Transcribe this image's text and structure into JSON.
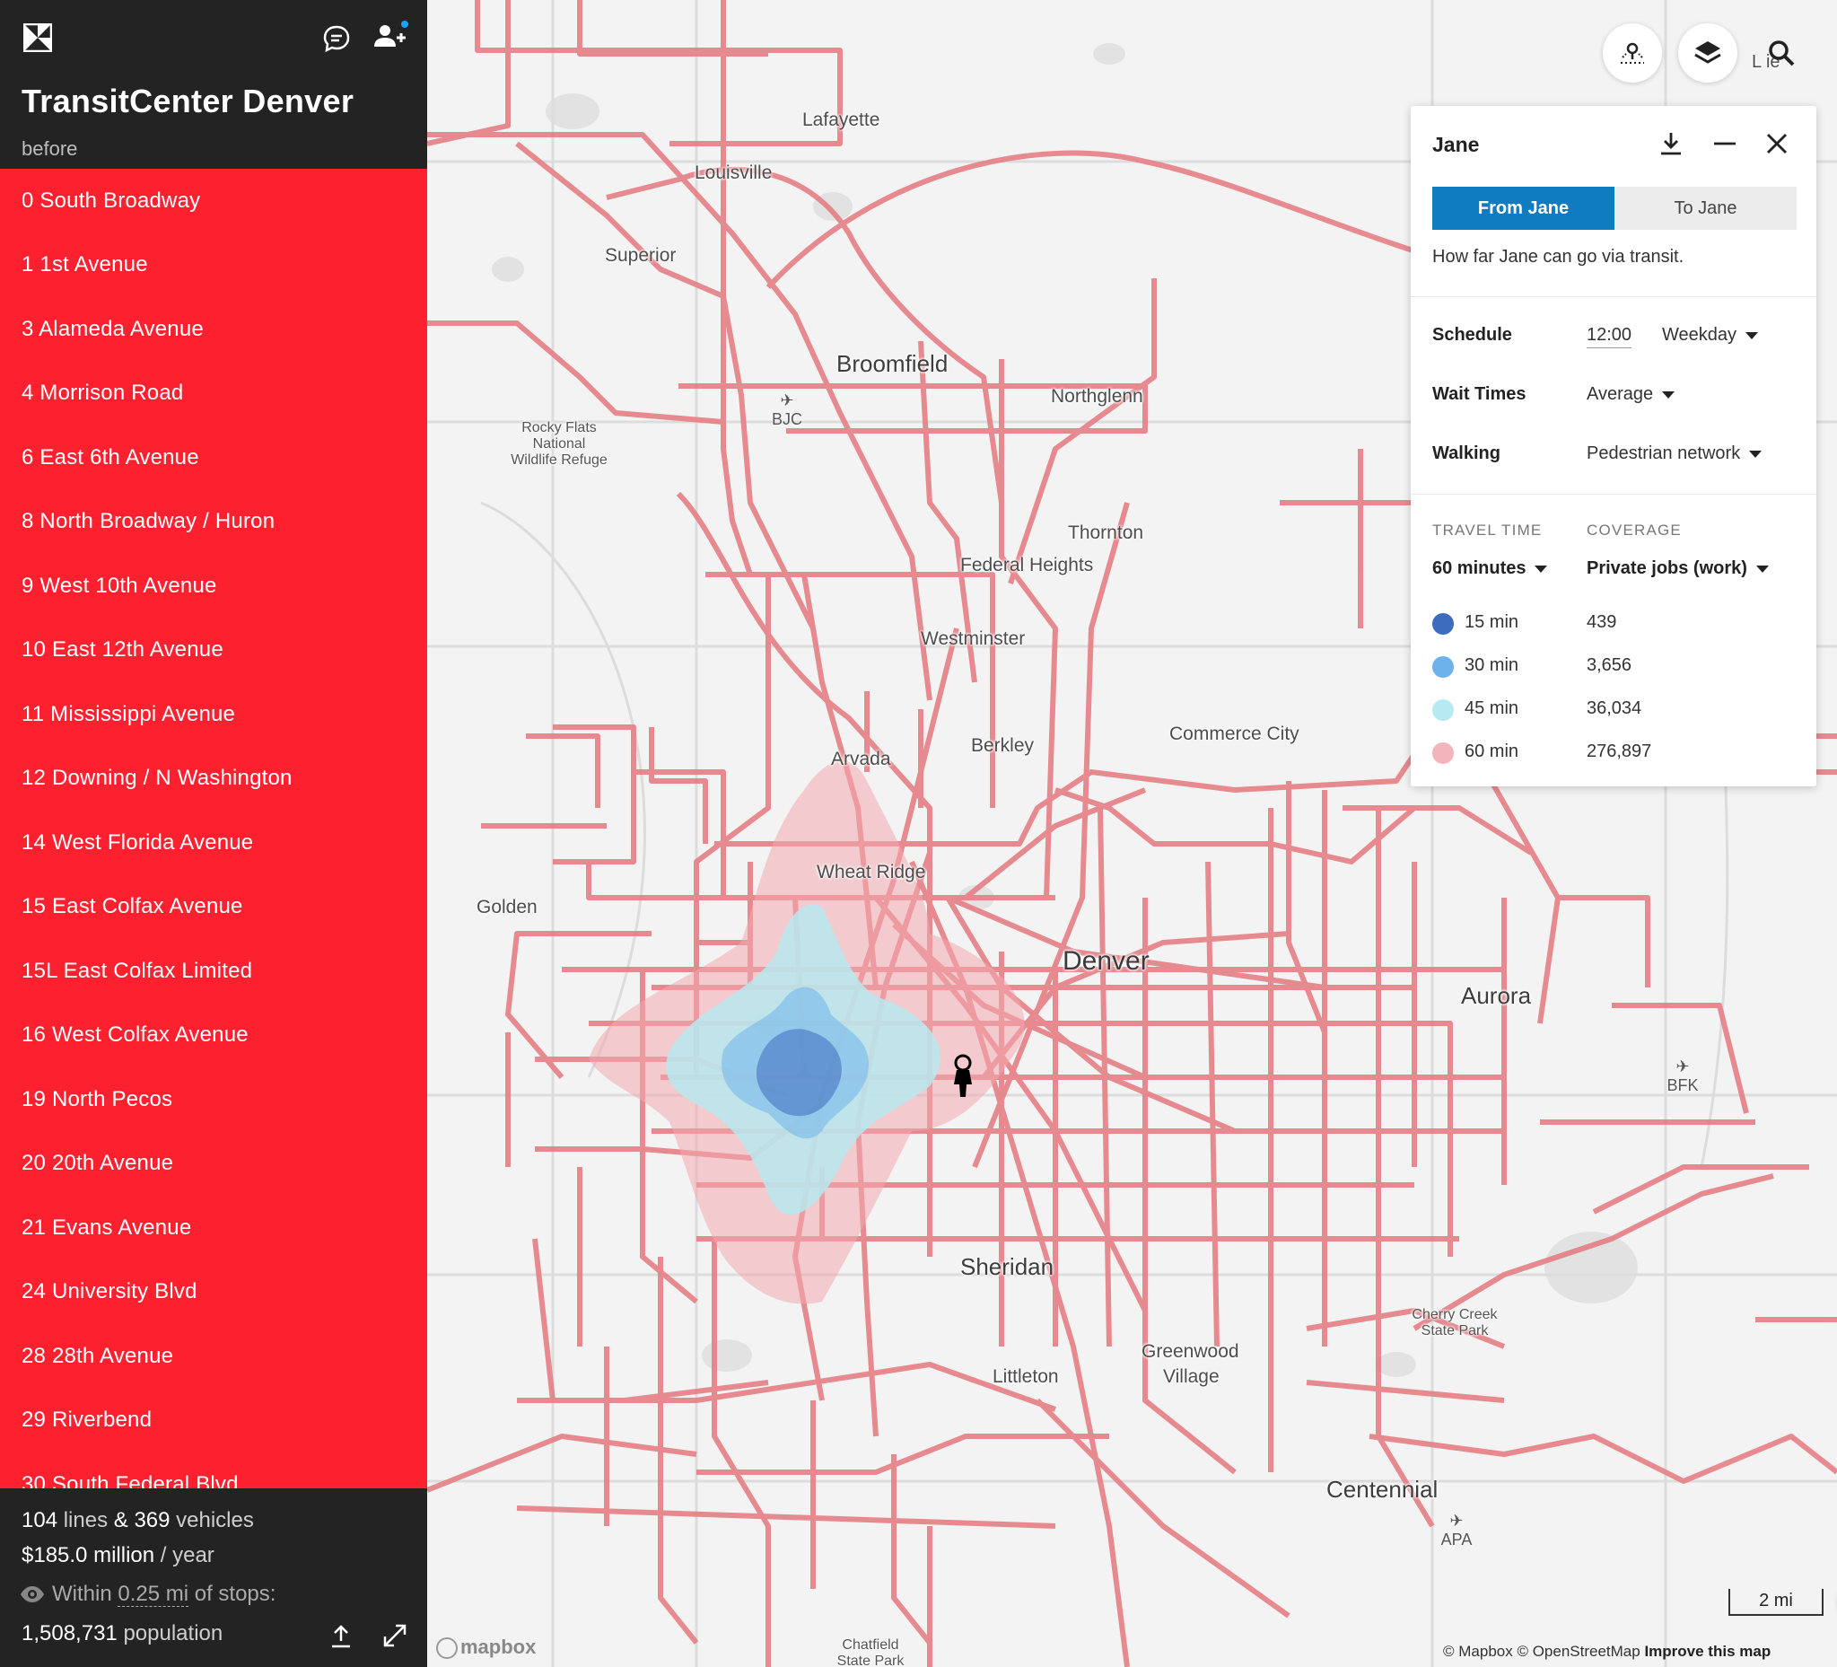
{
  "app": {
    "title": "TransitCenter Denver",
    "subtitle": "before"
  },
  "icons": {
    "logo": "logo-icon",
    "chat": "chat-icon",
    "invite": "add-user-icon",
    "upload": "upload-icon",
    "expand": "expand-icon",
    "eye": "eye-icon"
  },
  "lines": [
    "0 South Broadway",
    "1 1st Avenue",
    "3 Alameda Avenue",
    "4 Morrison Road",
    "6 East 6th Avenue",
    "8 North Broadway / Huron",
    "9 West 10th Avenue",
    "10 East 12th Avenue",
    "11 Mississippi Avenue",
    "12 Downing / N Washington",
    "14 West Florida Avenue",
    "15 East Colfax Avenue",
    "15L East Colfax Limited",
    "16 West Colfax Avenue",
    "19 North Pecos",
    "20 20th Avenue",
    "21 Evans Avenue",
    "24 University Blvd",
    "28 28th Avenue",
    "29 Riverbend",
    "30 South Federal Blvd"
  ],
  "stats": {
    "lines_count": "104",
    "lines_word": "lines",
    "amp": "&",
    "vehicles_count": "369",
    "vehicles_word": "vehicles",
    "cost": "$185.0 million",
    "cost_unit": "/ year",
    "buffer_prefix": "Within",
    "buffer_value": "0.25 mi",
    "buffer_suffix": "of stops:",
    "population_value": "1,508,731",
    "population_word": "population"
  },
  "map": {
    "places": [
      "Lafayette",
      "Louisville",
      "Superior",
      "Broomfield",
      "Northglenn",
      "Thornton",
      "Federal Heights",
      "Westminster",
      "Commerce City",
      "Arvada",
      "Berkley",
      "Wheat Ridge",
      "Golden",
      "Denver",
      "Aurora",
      "Sheridan",
      "Littleton",
      "Greenwood",
      "Village",
      "Centennial"
    ],
    "small_places": {
      "rocky_flats_1": "Rocky Flats",
      "rocky_flats_2": "National",
      "rocky_flats_3": "Wildlife Refuge",
      "cherry_1": "Cherry Creek",
      "cherry_2": "State Park",
      "chatfield_1": "Chatfield",
      "chatfield_2": "State Park",
      "edge": "L   ie"
    },
    "airports": {
      "bjc": "BJC",
      "bfk": "BFK",
      "apa": "APA"
    },
    "scale": "2 mi",
    "mapbox": "mapbox",
    "attribution_1": "© Mapbox © OpenStreetMap",
    "attribution_2": "Improve this map",
    "accent_route": "#e57f86",
    "isochrone_colors": [
      "#3d6bbd",
      "#6db2ea",
      "#b7e9f0",
      "#f4b4bb"
    ]
  },
  "panel": {
    "title": "Jane",
    "from_label": "From Jane",
    "to_label": "To Jane",
    "description": "How far Jane can go via transit.",
    "schedule_label": "Schedule",
    "schedule_time": "12:00",
    "schedule_day": "Weekday",
    "wait_label": "Wait Times",
    "wait_value": "Average",
    "walk_label": "Walking",
    "walk_value": "Pedestrian network",
    "travel_time_header": "TRAVEL TIME",
    "coverage_header": "COVERAGE",
    "travel_time_value": "60 minutes",
    "coverage_value": "Private jobs (work)",
    "legend": [
      {
        "label": "15 min",
        "value": "439",
        "color": "#3d6bbd"
      },
      {
        "label": "30 min",
        "value": "3,656",
        "color": "#6db2ea"
      },
      {
        "label": "45 min",
        "value": "36,034",
        "color": "#b7e9f0"
      },
      {
        "label": "60 min",
        "value": "276,897",
        "color": "#f4b4bb"
      }
    ]
  }
}
